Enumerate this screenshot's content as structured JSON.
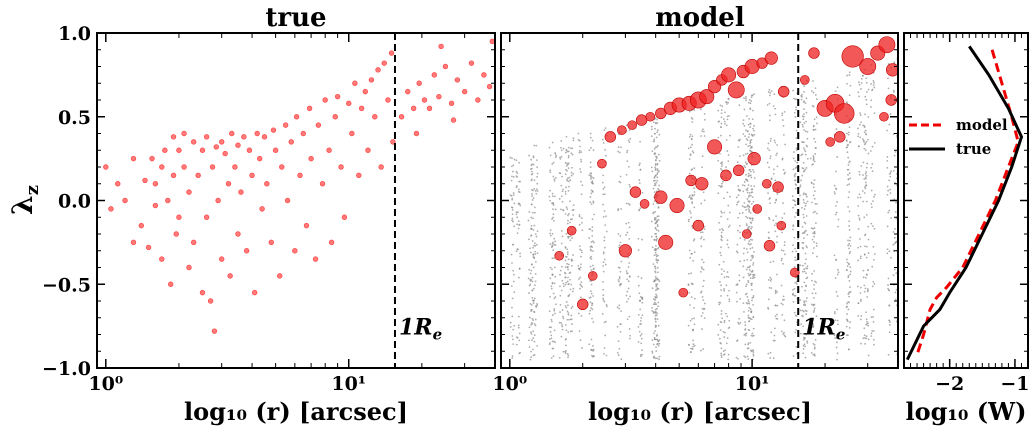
{
  "chart_data": [
    {
      "panel": "left",
      "type": "scatter",
      "title": "true",
      "xlabel": "log₁₀ (r) [arcsec]",
      "ylabel": "λz",
      "xscale": "log",
      "xlim": [
        0.92,
        40
      ],
      "ylim": [
        -1.0,
        1.0
      ],
      "x_ticks": [
        {
          "value": 1,
          "label": "10⁰"
        },
        {
          "value": 10,
          "label": "10¹"
        }
      ],
      "y_ticks": [
        {
          "value": -1.0,
          "label": "−1.0"
        },
        {
          "value": -0.5,
          "label": "−0.5"
        },
        {
          "value": 0.0,
          "label": "0.0"
        },
        {
          "value": 0.5,
          "label": "0.5"
        },
        {
          "value": 1.0,
          "label": "1.0"
        }
      ],
      "vline": {
        "x": 15.5,
        "label": "1R",
        "label_sub": "e",
        "style": "dashed"
      },
      "series": [
        {
          "marker_color": "#ff2020",
          "points": [
            [
              1.0,
              0.2
            ],
            [
              1.05,
              -0.05
            ],
            [
              1.12,
              0.1
            ],
            [
              1.2,
              0.0
            ],
            [
              1.3,
              -0.25
            ],
            [
              1.3,
              0.25
            ],
            [
              1.4,
              -0.15
            ],
            [
              1.45,
              0.12
            ],
            [
              1.5,
              -0.28
            ],
            [
              1.55,
              0.25
            ],
            [
              1.6,
              0.1
            ],
            [
              1.6,
              -0.03
            ],
            [
              1.7,
              0.2
            ],
            [
              1.7,
              -0.35
            ],
            [
              1.75,
              0.3
            ],
            [
              1.8,
              0.0
            ],
            [
              1.85,
              -0.5
            ],
            [
              1.9,
              0.38
            ],
            [
              1.9,
              0.15
            ],
            [
              1.95,
              -0.2
            ],
            [
              2.0,
              0.3
            ],
            [
              2.0,
              -0.1
            ],
            [
              2.1,
              0.4
            ],
            [
              2.1,
              0.2
            ],
            [
              2.2,
              -0.4
            ],
            [
              2.2,
              0.05
            ],
            [
              2.3,
              0.35
            ],
            [
              2.3,
              -0.25
            ],
            [
              2.4,
              0.15
            ],
            [
              2.5,
              -0.55
            ],
            [
              2.5,
              0.3
            ],
            [
              2.6,
              0.38
            ],
            [
              2.6,
              -0.1
            ],
            [
              2.7,
              -0.6
            ],
            [
              2.75,
              0.2
            ],
            [
              2.8,
              -0.78
            ],
            [
              2.85,
              0.32
            ],
            [
              2.9,
              0.0
            ],
            [
              3.0,
              0.35
            ],
            [
              3.0,
              -0.35
            ],
            [
              3.1,
              0.28
            ],
            [
              3.2,
              0.1
            ],
            [
              3.25,
              -0.45
            ],
            [
              3.3,
              0.4
            ],
            [
              3.4,
              0.2
            ],
            [
              3.5,
              -0.2
            ],
            [
              3.5,
              0.33
            ],
            [
              3.6,
              0.05
            ],
            [
              3.7,
              0.38
            ],
            [
              3.8,
              -0.3
            ],
            [
              3.9,
              0.3
            ],
            [
              4.0,
              0.15
            ],
            [
              4.1,
              -0.55
            ],
            [
              4.2,
              0.4
            ],
            [
              4.3,
              0.25
            ],
            [
              4.4,
              -0.05
            ],
            [
              4.5,
              0.38
            ],
            [
              4.6,
              0.1
            ],
            [
              4.8,
              -0.25
            ],
            [
              4.9,
              0.42
            ],
            [
              5.0,
              0.3
            ],
            [
              5.2,
              -0.45
            ],
            [
              5.3,
              0.2
            ],
            [
              5.5,
              0.45
            ],
            [
              5.6,
              0.0
            ],
            [
              5.8,
              0.35
            ],
            [
              6.0,
              -0.3
            ],
            [
              6.1,
              0.5
            ],
            [
              6.3,
              0.15
            ],
            [
              6.5,
              0.4
            ],
            [
              6.7,
              -0.15
            ],
            [
              6.9,
              0.55
            ],
            [
              7.0,
              0.25
            ],
            [
              7.3,
              -0.35
            ],
            [
              7.5,
              0.45
            ],
            [
              7.8,
              0.1
            ],
            [
              8.0,
              0.6
            ],
            [
              8.3,
              0.3
            ],
            [
              8.5,
              -0.25
            ],
            [
              8.8,
              0.5
            ],
            [
              9.0,
              0.62
            ],
            [
              9.3,
              0.2
            ],
            [
              9.6,
              -0.1
            ],
            [
              10.0,
              0.58
            ],
            [
              10.3,
              0.4
            ],
            [
              10.6,
              0.7
            ],
            [
              11.0,
              0.15
            ],
            [
              11.3,
              0.55
            ],
            [
              11.7,
              0.65
            ],
            [
              12.0,
              0.3
            ],
            [
              12.4,
              0.72
            ],
            [
              12.8,
              0.5
            ],
            [
              13.2,
              0.78
            ],
            [
              13.6,
              0.2
            ],
            [
              14.0,
              0.82
            ],
            [
              14.5,
              0.6
            ],
            [
              15.0,
              0.88
            ],
            [
              15.2,
              0.35
            ],
            [
              16.5,
              0.5
            ],
            [
              17.5,
              0.65
            ],
            [
              18.5,
              0.55
            ],
            [
              19.5,
              0.7
            ],
            [
              20.5,
              0.6
            ],
            [
              21.5,
              0.55
            ],
            [
              22.5,
              0.75
            ],
            [
              23.5,
              0.62
            ],
            [
              25.0,
              0.8
            ],
            [
              26.5,
              0.58
            ],
            [
              28.0,
              0.72
            ],
            [
              30.0,
              0.65
            ],
            [
              32.0,
              0.82
            ],
            [
              34.0,
              0.6
            ],
            [
              36.0,
              0.75
            ],
            [
              38.0,
              0.68
            ],
            [
              39.0,
              0.95
            ],
            [
              24.0,
              0.92
            ],
            [
              19.0,
              0.4
            ],
            [
              27.0,
              0.48
            ]
          ]
        }
      ]
    },
    {
      "panel": "middle",
      "type": "scatter",
      "title": "model",
      "xlabel": "log₁₀ (r) [arcsec]",
      "xscale": "log",
      "xlim": [
        0.92,
        40
      ],
      "ylim": [
        -1.0,
        1.0
      ],
      "x_ticks": [
        {
          "value": 1,
          "label": "10⁰"
        },
        {
          "value": 10,
          "label": "10¹"
        }
      ],
      "vline": {
        "x": 15.5,
        "label": "1R",
        "label_sub": "e",
        "style": "dashed"
      },
      "series": [
        {
          "marker_color": "#ef2020",
          "points": [
            [
              2.6,
              0.38,
              6
            ],
            [
              2.9,
              0.42,
              5
            ],
            [
              3.2,
              0.45,
              5
            ],
            [
              3.5,
              0.48,
              6
            ],
            [
              3.8,
              0.5,
              5
            ],
            [
              4.2,
              0.52,
              6
            ],
            [
              4.6,
              0.55,
              7
            ],
            [
              5.0,
              0.57,
              8
            ],
            [
              5.5,
              0.58,
              8
            ],
            [
              6.0,
              0.6,
              9
            ],
            [
              6.5,
              0.62,
              8
            ],
            [
              7.0,
              0.68,
              7
            ],
            [
              7.5,
              0.72,
              6
            ],
            [
              8.0,
              0.75,
              8
            ],
            [
              8.6,
              0.66,
              9
            ],
            [
              9.2,
              0.77,
              7
            ],
            [
              10.0,
              0.8,
              8
            ],
            [
              11.0,
              0.82,
              6
            ],
            [
              12.0,
              0.85,
              7
            ],
            [
              13.5,
              0.65,
              6
            ],
            [
              16.5,
              0.72,
              5
            ],
            [
              18.0,
              0.88,
              6
            ],
            [
              20.0,
              0.55,
              9
            ],
            [
              22.0,
              0.58,
              10
            ],
            [
              24.0,
              0.52,
              11
            ],
            [
              26.0,
              0.86,
              12
            ],
            [
              30.0,
              0.8,
              9
            ],
            [
              33.0,
              0.88,
              8
            ],
            [
              36.0,
              0.93,
              9
            ],
            [
              38.0,
              0.78,
              7
            ],
            [
              37.5,
              0.6,
              6
            ],
            [
              35.0,
              0.5,
              5
            ],
            [
              23.0,
              0.38,
              6
            ],
            [
              21.0,
              0.35,
              5
            ],
            [
              2.4,
              0.22,
              5
            ],
            [
              3.3,
              0.05,
              6
            ],
            [
              3.6,
              -0.02,
              5
            ],
            [
              4.2,
              0.02,
              7
            ],
            [
              4.9,
              -0.03,
              8
            ],
            [
              5.6,
              0.12,
              6
            ],
            [
              6.2,
              0.1,
              7
            ],
            [
              7.0,
              0.32,
              8
            ],
            [
              7.8,
              0.15,
              6
            ],
            [
              8.8,
              0.18,
              6
            ],
            [
              10.2,
              0.25,
              7
            ],
            [
              11.5,
              0.1,
              5
            ],
            [
              12.8,
              0.08,
              6
            ],
            [
              3.0,
              -0.3,
              7
            ],
            [
              4.4,
              -0.25,
              8
            ],
            [
              6.0,
              -0.15,
              6
            ],
            [
              2.2,
              -0.45,
              5
            ],
            [
              2.0,
              -0.62,
              6
            ],
            [
              1.8,
              -0.18,
              5
            ],
            [
              1.6,
              -0.33,
              5
            ],
            [
              10.5,
              -0.05,
              5
            ],
            [
              11.8,
              -0.27,
              6
            ],
            [
              13.2,
              -0.15,
              5
            ],
            [
              15.0,
              -0.43,
              5
            ],
            [
              9.5,
              -0.2,
              5
            ],
            [
              5.2,
              -0.55,
              5
            ]
          ]
        }
      ]
    },
    {
      "panel": "right",
      "type": "line",
      "xlabel": "log₁₀ (W)",
      "xlim": [
        -2.7,
        -0.8
      ],
      "ylim": [
        -1.0,
        1.0
      ],
      "x_ticks": [
        {
          "value": -2,
          "label": "−2"
        },
        {
          "value": -1,
          "label": "−1"
        }
      ],
      "legend": "upper-center",
      "series": [
        {
          "name": "model",
          "color": "#ee0000",
          "style": "dashed",
          "points": [
            [
              -1.35,
              0.9
            ],
            [
              -1.2,
              0.7
            ],
            [
              -1.05,
              0.5
            ],
            [
              -0.95,
              0.35
            ],
            [
              -1.1,
              0.2
            ],
            [
              -1.3,
              0.0
            ],
            [
              -1.55,
              -0.2
            ],
            [
              -1.8,
              -0.4
            ],
            [
              -2.05,
              -0.52
            ],
            [
              -2.2,
              -0.58
            ],
            [
              -2.3,
              -0.65
            ],
            [
              -2.4,
              -0.8
            ],
            [
              -2.5,
              -0.92
            ]
          ]
        },
        {
          "name": "true",
          "color": "#000000",
          "style": "solid",
          "points": [
            [
              -1.7,
              0.92
            ],
            [
              -1.4,
              0.75
            ],
            [
              -1.1,
              0.55
            ],
            [
              -0.9,
              0.38
            ],
            [
              -1.05,
              0.2
            ],
            [
              -1.25,
              0.0
            ],
            [
              -1.5,
              -0.2
            ],
            [
              -1.75,
              -0.4
            ],
            [
              -2.0,
              -0.55
            ],
            [
              -2.15,
              -0.65
            ],
            [
              -2.4,
              -0.75
            ],
            [
              -2.65,
              -0.95
            ]
          ]
        }
      ]
    }
  ]
}
